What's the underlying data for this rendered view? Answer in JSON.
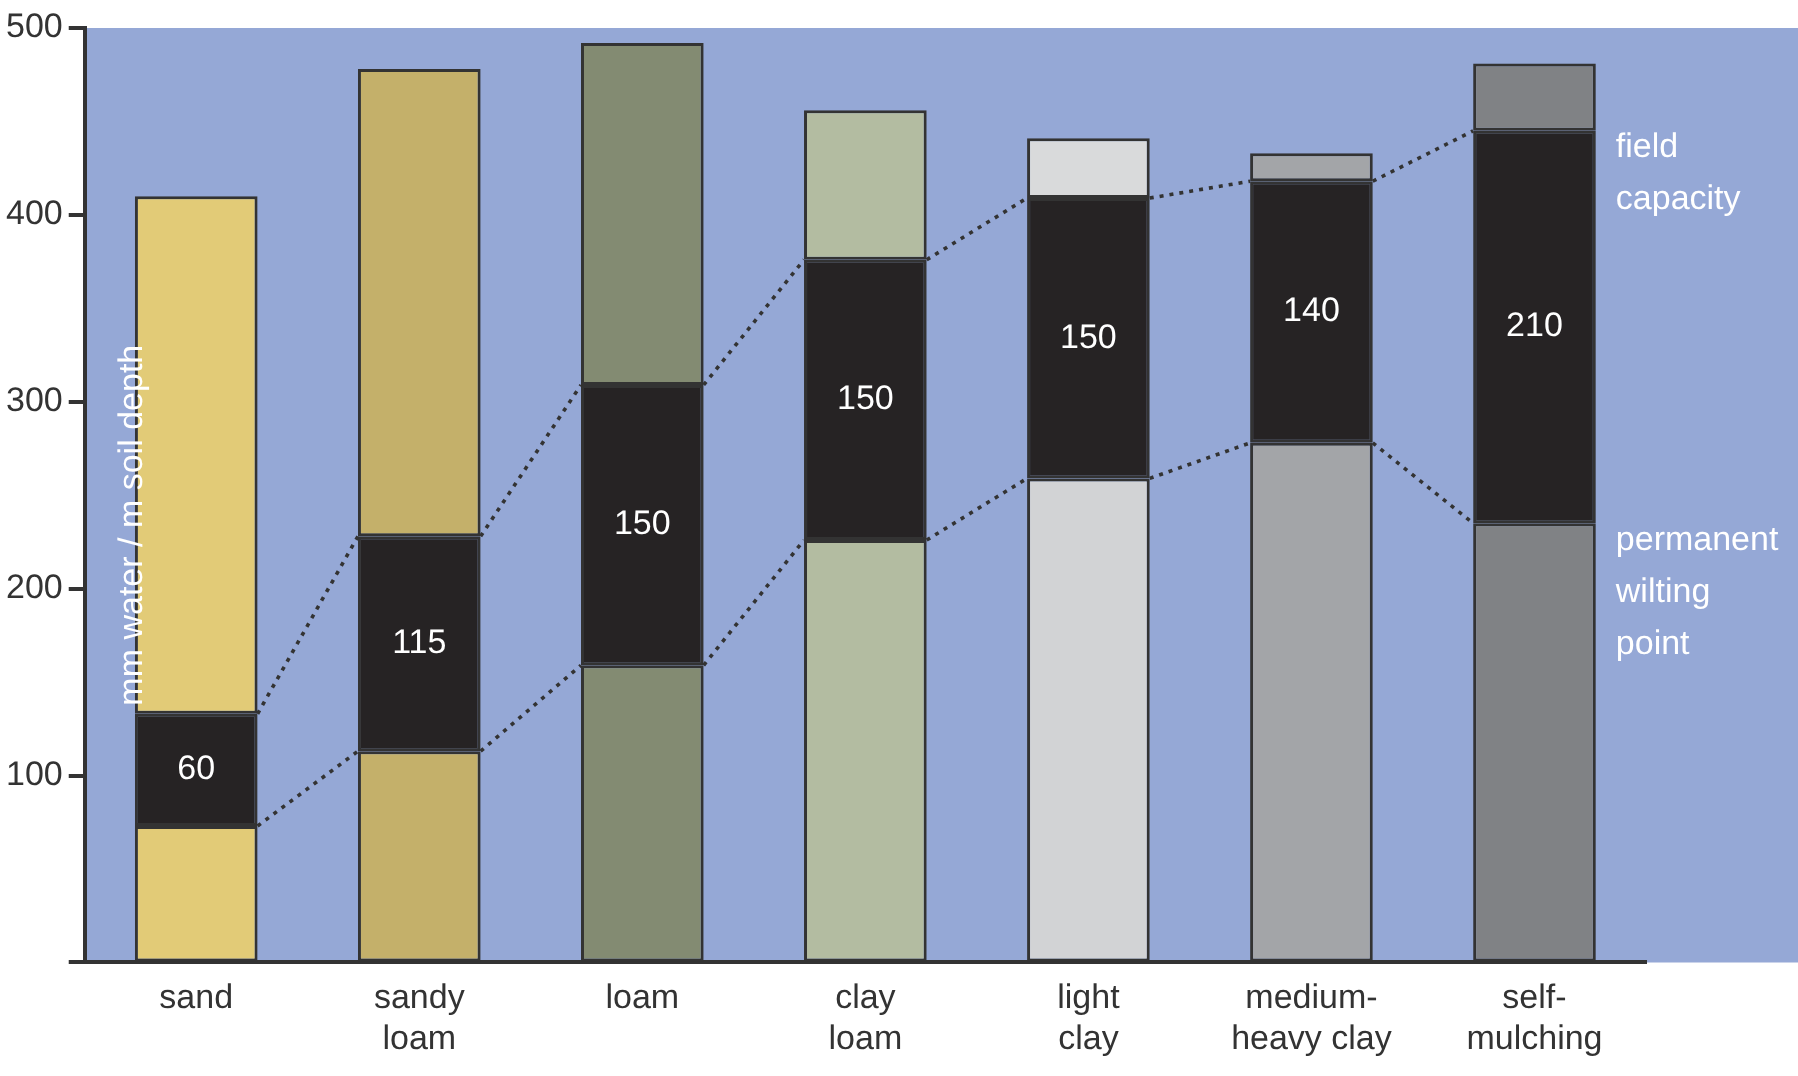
{
  "chart_data": {
    "type": "bar",
    "stacked": true,
    "ylabel": "mm water / m soil depth",
    "categories": [
      "sand",
      "sandy loam",
      "loam",
      "clay loam",
      "light clay",
      "medium-heavy clay",
      "self-mulching"
    ],
    "series": [
      {
        "colors": [
          "#e2cb77",
          "#c4b06a",
          "#838b72",
          "#b3bca1",
          "#d2d3d5",
          "#a3a5a8",
          "#808285"
        ],
        "values": [
          73,
          113,
          159,
          226,
          259,
          278,
          235
        ]
      },
      {
        "color": "#262324",
        "values": [
          60,
          115,
          150,
          150,
          150,
          140,
          210
        ],
        "value_labels": [
          "60",
          "115",
          "150",
          "150",
          "150",
          "140",
          "210"
        ]
      },
      {
        "colors": [
          "#e2cb77",
          "#c4b06a",
          "#838b72",
          "#b3bca1",
          "#d9dadb",
          "#a3a5a8",
          "#808285"
        ],
        "values": [
          277,
          250,
          183,
          80,
          32,
          15,
          36
        ]
      }
    ],
    "ylim": [
      0,
      500
    ],
    "yticks": [
      {
        "value": 0,
        "label": null
      },
      100,
      200,
      300,
      400,
      500
    ],
    "grid": false,
    "legend": false,
    "annotations": [
      {
        "text": "field capacity",
        "x": "self-mulching",
        "y": 445
      },
      {
        "text": "permanent wilting point",
        "x": "self-mulching",
        "y": 235
      }
    ]
  }
}
